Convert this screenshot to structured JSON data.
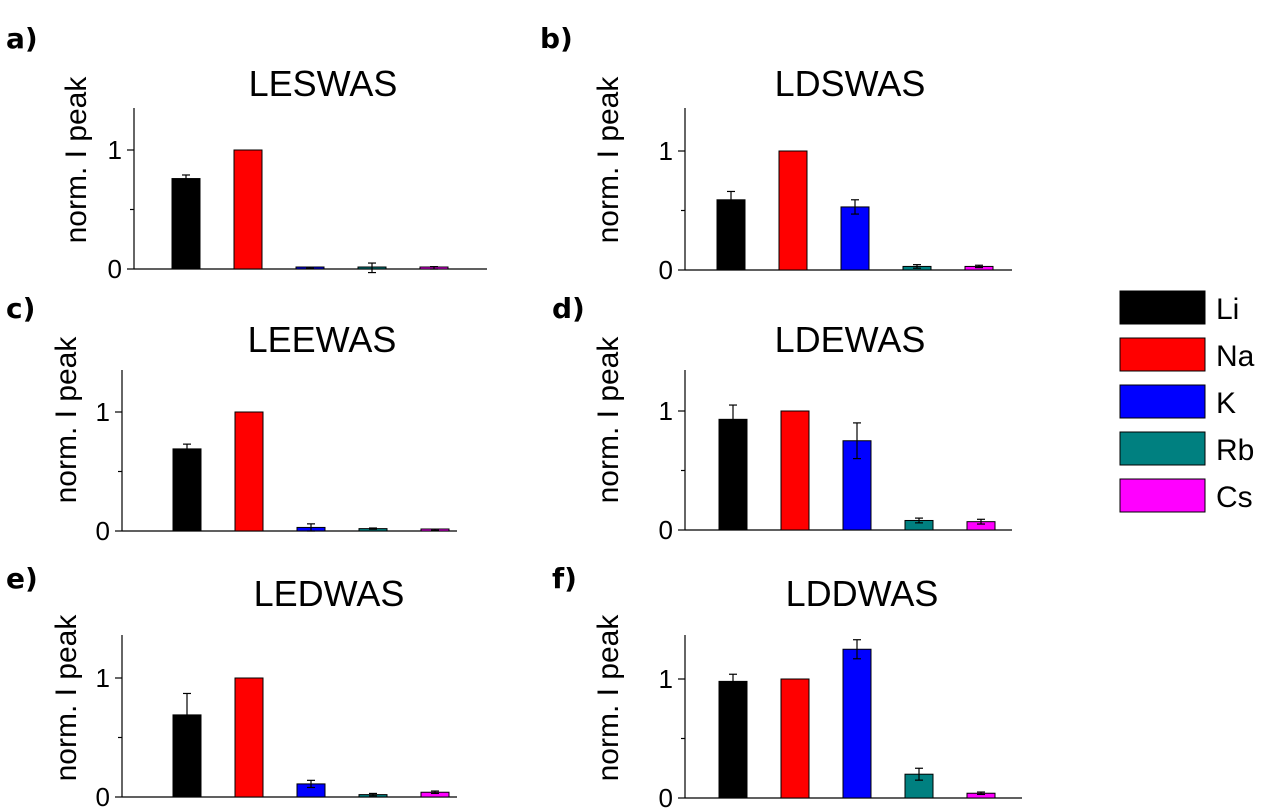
{
  "legend": [
    {
      "label": "Li",
      "color": "#000000"
    },
    {
      "label": "Na",
      "color": "#ff0000"
    },
    {
      "label": "K",
      "color": "#0000ff"
    },
    {
      "label": "Rb",
      "color": "#008080"
    },
    {
      "label": "Cs",
      "color": "#ff00ff"
    }
  ],
  "chart_data": [
    {
      "panel": "a)",
      "type": "bar",
      "title": "LESWAS",
      "ylabel": "norm. I peak",
      "categories": [
        "Li",
        "Na",
        "K",
        "Rb",
        "Cs"
      ],
      "values": [
        0.76,
        1.0,
        0.01,
        0.01,
        0.01
      ],
      "errors": [
        0.03,
        0.0,
        0.005,
        0.04,
        0.01
      ],
      "yticks": [
        0,
        1
      ],
      "ylim": [
        0,
        1.35
      ]
    },
    {
      "panel": "b)",
      "type": "bar",
      "title": "LDSWAS",
      "ylabel": "norm. I peak",
      "categories": [
        "Li",
        "Na",
        "K",
        "Rb",
        "Cs"
      ],
      "values": [
        0.59,
        1.0,
        0.53,
        0.03,
        0.03
      ],
      "errors": [
        0.07,
        0.0,
        0.06,
        0.015,
        0.01
      ],
      "yticks": [
        0,
        1
      ],
      "ylim": [
        0,
        1.35
      ]
    },
    {
      "panel": "c)",
      "type": "bar",
      "title": "LEEWAS",
      "ylabel": "norm. I peak",
      "categories": [
        "Li",
        "Na",
        "K",
        "Rb",
        "Cs"
      ],
      "values": [
        0.69,
        1.0,
        0.03,
        0.02,
        0.01
      ],
      "errors": [
        0.04,
        0.0,
        0.03,
        0.005,
        0.005
      ],
      "yticks": [
        0,
        1
      ],
      "ylim": [
        0,
        1.35
      ]
    },
    {
      "panel": "d)",
      "type": "bar",
      "title": "LDEWAS",
      "ylabel": "norm. I peak",
      "categories": [
        "Li",
        "Na",
        "K",
        "Rb",
        "Cs"
      ],
      "values": [
        0.93,
        1.0,
        0.75,
        0.08,
        0.07
      ],
      "errors": [
        0.12,
        0.0,
        0.15,
        0.02,
        0.02
      ],
      "yticks": [
        0,
        1
      ],
      "ylim": [
        0,
        1.35
      ]
    },
    {
      "panel": "e)",
      "type": "bar",
      "title": "LEDWAS",
      "ylabel": "norm. I peak",
      "categories": [
        "Li",
        "Na",
        "K",
        "Rb",
        "Cs"
      ],
      "values": [
        0.69,
        1.0,
        0.11,
        0.02,
        0.04
      ],
      "errors": [
        0.18,
        0.0,
        0.03,
        0.01,
        0.01
      ],
      "yticks": [
        0,
        1
      ],
      "ylim": [
        0,
        1.35
      ]
    },
    {
      "panel": "f)",
      "type": "bar",
      "title": "LDDWAS",
      "ylabel": "norm. I peak",
      "categories": [
        "Li",
        "Na",
        "K",
        "Rb",
        "Cs"
      ],
      "values": [
        0.98,
        1.0,
        1.25,
        0.2,
        0.04
      ],
      "errors": [
        0.06,
        0.0,
        0.08,
        0.05,
        0.01
      ],
      "yticks": [
        0,
        1
      ],
      "ylim": [
        0,
        1.35
      ]
    }
  ]
}
